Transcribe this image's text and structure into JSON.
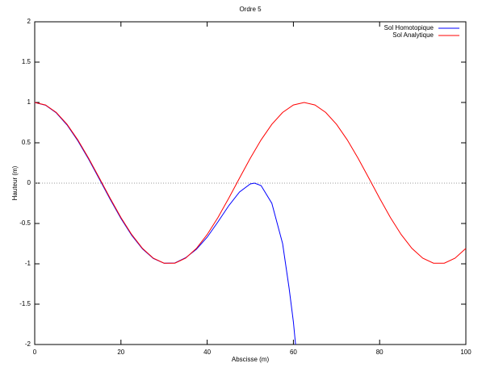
{
  "chart_data": {
    "type": "line",
    "title": "Ordre 5",
    "x_label": "Abscisse (m)",
    "y_label": "Hauteur (m)",
    "xlim": [
      0,
      100
    ],
    "xticks": [
      0,
      20,
      40,
      60,
      80,
      100
    ],
    "ylim": [
      -2,
      2
    ],
    "yticks": [
      -2,
      -1.5,
      -1,
      -0.5,
      0,
      0.5,
      1,
      1.5,
      2
    ],
    "zero_line": true,
    "legend": "top-right",
    "series": [
      {
        "name": "Sol Homotopique",
        "color": "#0000ff",
        "x": [
          0,
          2.5,
          5,
          7.5,
          10,
          12.5,
          15,
          17.5,
          20,
          22.5,
          25,
          27.5,
          30,
          32.5,
          35,
          37.5,
          40,
          42.5,
          45,
          47.5,
          50,
          51,
          52.5,
          55,
          57.5,
          59,
          60,
          60.5
        ],
        "values": [
          1,
          0.966,
          0.871,
          0.721,
          0.525,
          0.297,
          0.05,
          -0.2,
          -0.437,
          -0.647,
          -0.815,
          -0.933,
          -0.993,
          -0.99,
          -0.925,
          -0.82,
          -0.67,
          -0.48,
          -0.28,
          -0.11,
          -0.01,
          0,
          -0.03,
          -0.25,
          -0.75,
          -1.3,
          -1.72,
          -2
        ]
      },
      {
        "name": "Sol Analytique",
        "color": "#ff0000",
        "x": [
          0,
          2.5,
          5,
          7.5,
          10,
          12.5,
          15,
          17.5,
          20,
          22.5,
          25,
          27.5,
          30,
          32.5,
          35,
          37.5,
          40,
          42.5,
          45,
          47.5,
          50,
          52.5,
          55,
          57.5,
          60,
          62.5,
          65,
          67.5,
          70,
          72.5,
          75,
          77.5,
          80,
          82.5,
          85,
          87.5,
          90,
          92.5,
          95,
          97.5,
          100
        ],
        "values": [
          1,
          0.9686,
          0.8763,
          0.729,
          0.5358,
          0.309,
          0.0628,
          -0.1874,
          -0.4258,
          -0.6374,
          -0.809,
          -0.9298,
          -0.9921,
          -0.9921,
          -0.9298,
          -0.809,
          -0.6374,
          -0.4258,
          -0.1874,
          0.0628,
          0.309,
          0.5358,
          0.729,
          0.8763,
          0.9686,
          1,
          0.9686,
          0.8763,
          0.729,
          0.5358,
          0.309,
          0.0628,
          -0.1874,
          -0.4258,
          -0.6374,
          -0.809,
          -0.9298,
          -0.9921,
          -0.9921,
          -0.9298,
          -0.809
        ]
      }
    ]
  }
}
